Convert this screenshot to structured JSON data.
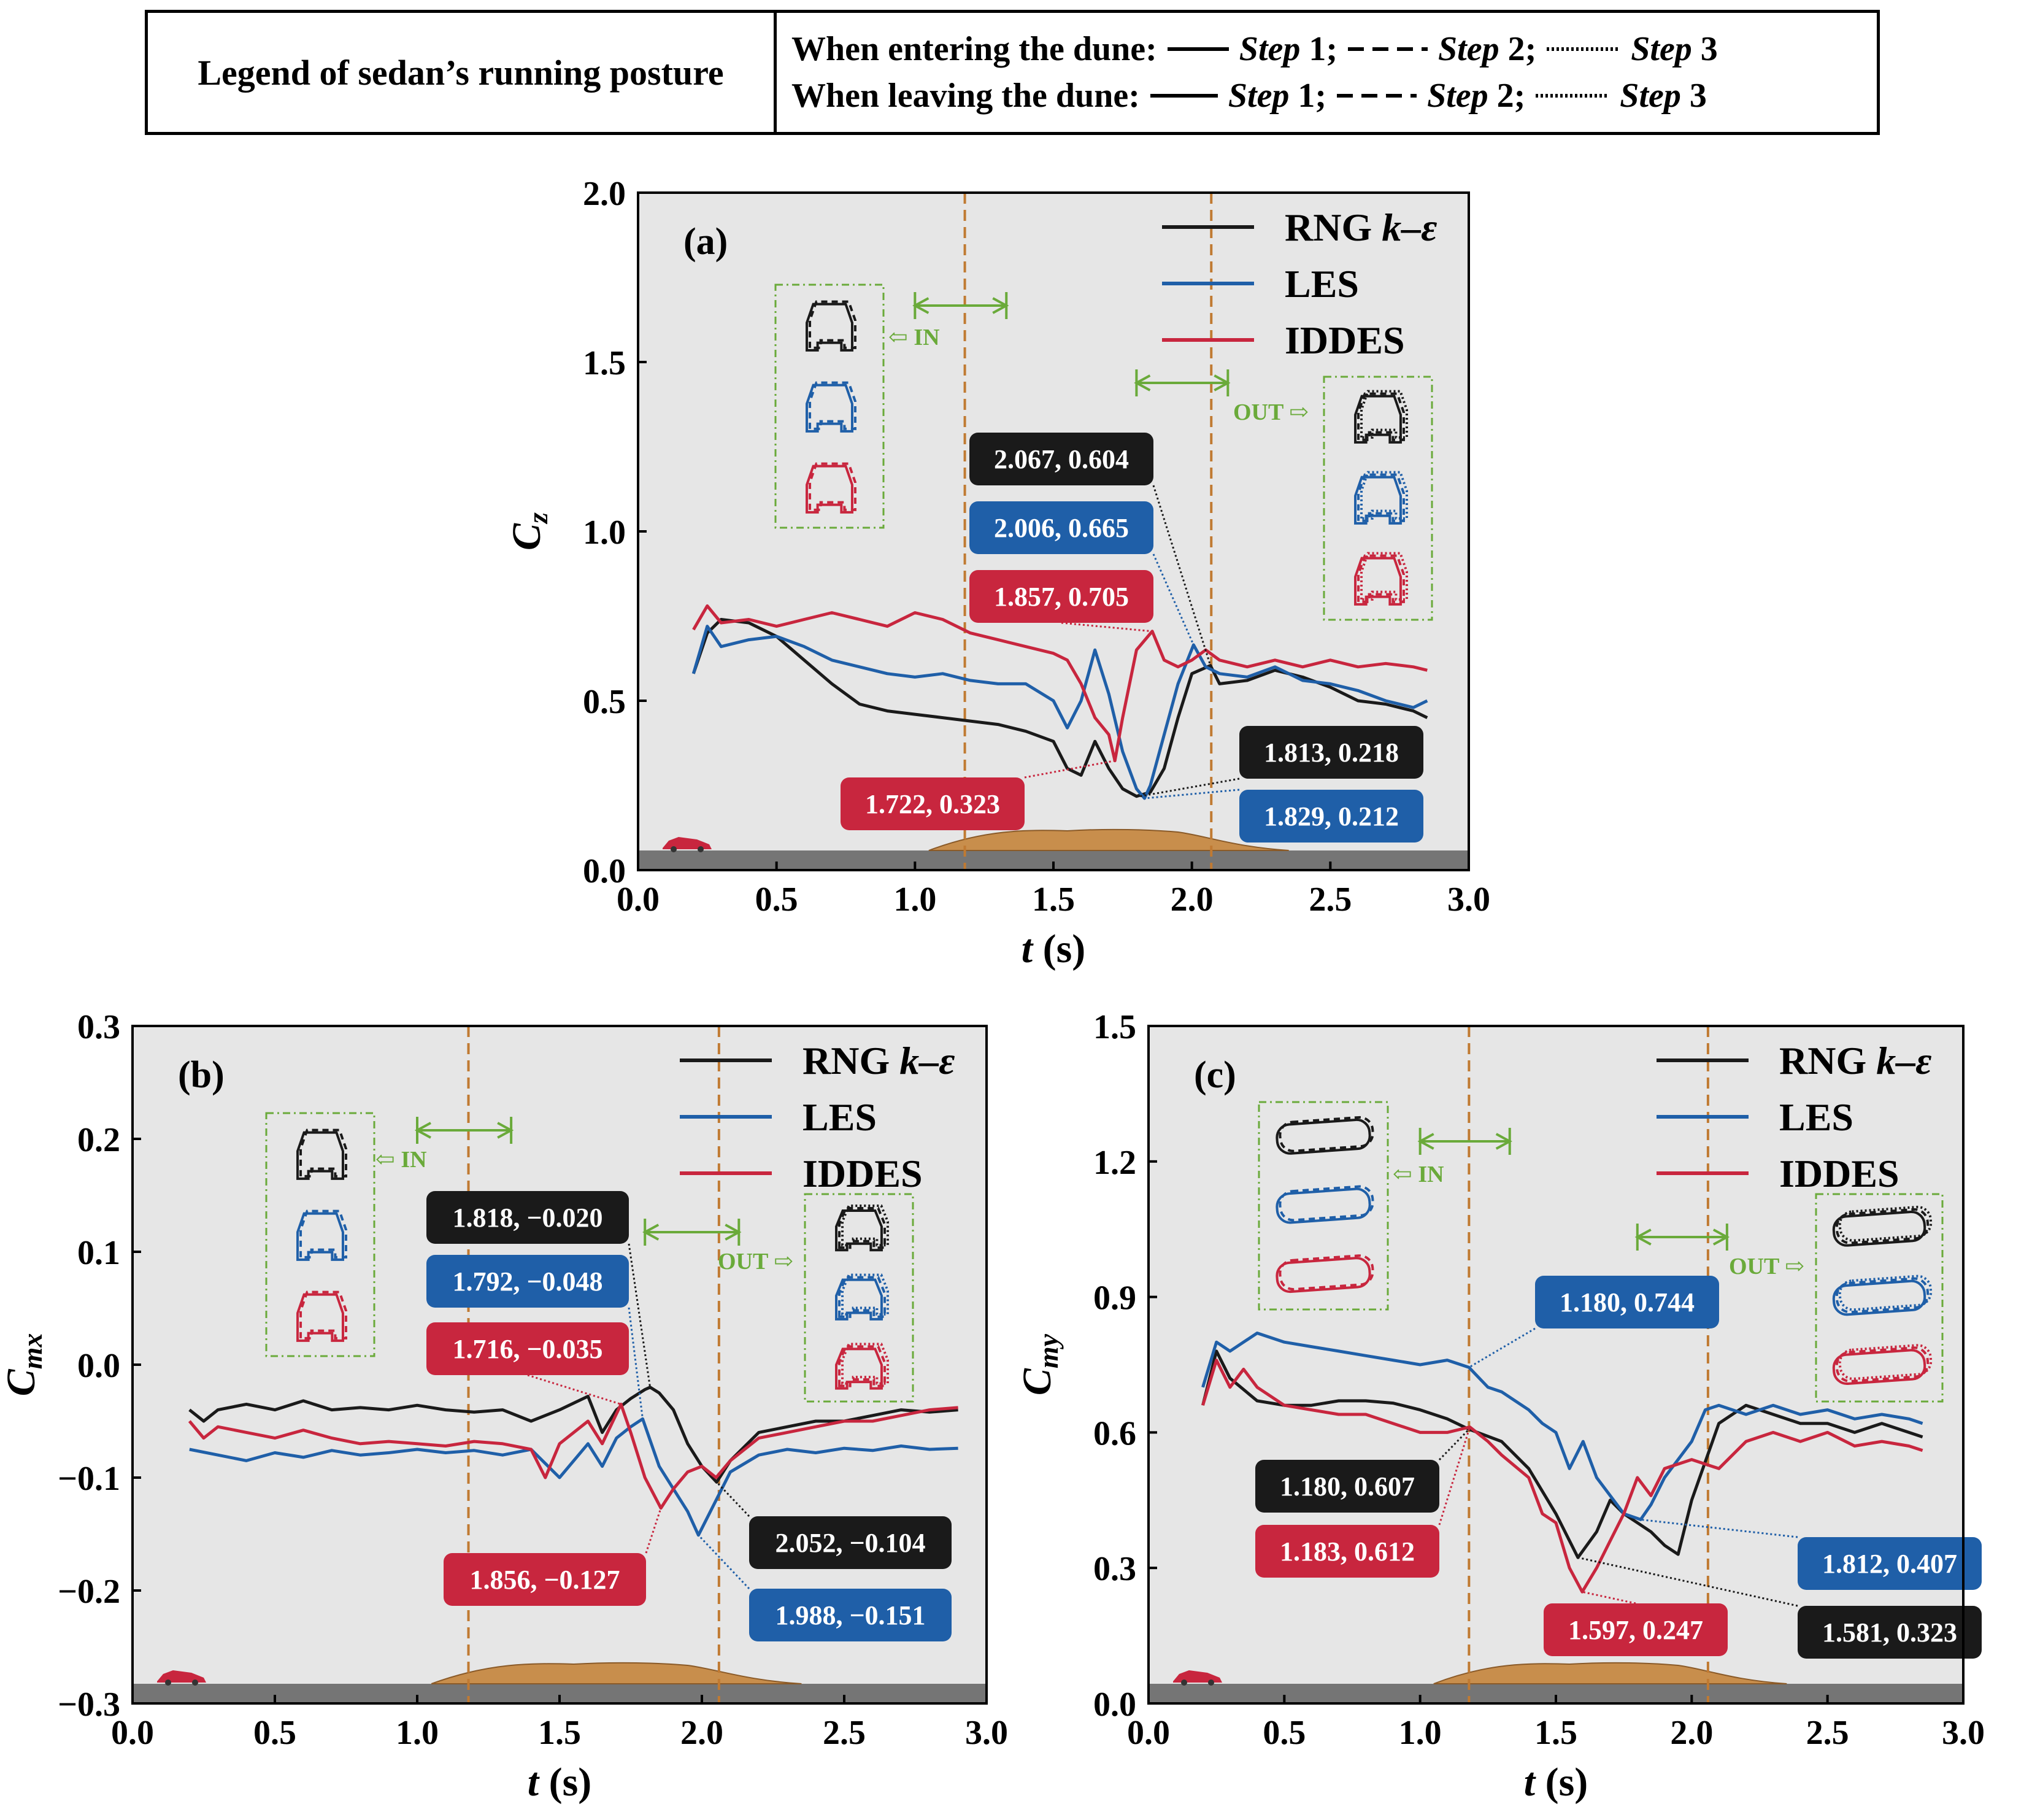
{
  "header_legend": {
    "title": "Legend of sedan’s running posture",
    "row1_label": "When entering the dune:",
    "row2_label": "When leaving the dune:",
    "step_word": "Step",
    "step1": "1;",
    "step2": "2;",
    "step3": "3"
  },
  "colors": {
    "rng": "#1a1a1a",
    "les": "#1f5fa8",
    "iddes": "#c8263e",
    "dune": "#c88e4c",
    "road": "#757575",
    "bg": "#e6e6e6",
    "arrow": "#6aaa3a",
    "vline": "#c07a32"
  },
  "panel_labels": {
    "a": "(a)",
    "b": "(b)",
    "c": "(c)"
  },
  "series_labels": {
    "rng": "RNG k–ε",
    "les": "LES",
    "iddes": "IDDES"
  },
  "axis_labels": {
    "x": "t (s)",
    "a_y": "Cz",
    "b_y": "Cmx",
    "c_y": "Cmy"
  },
  "in_label": "IN",
  "out_label": "OUT",
  "chart_data": [
    {
      "id": "a",
      "type": "line",
      "title": "(a)",
      "xlabel": "t (s)",
      "ylabel": "Cz",
      "xlim": [
        0,
        3
      ],
      "ylim": [
        0,
        2
      ],
      "xticks": [
        "0.0",
        "0.5",
        "1.0",
        "1.5",
        "2.0",
        "2.5",
        "3.0"
      ],
      "yticks": [
        "0.0",
        "0.5",
        "1.0",
        "1.5",
        "2.0"
      ],
      "vlines": [
        1.18,
        2.07
      ],
      "series": [
        {
          "name": "RNG k–ε",
          "x": [
            0.2,
            0.25,
            0.3,
            0.4,
            0.5,
            0.6,
            0.7,
            0.8,
            0.9,
            1.0,
            1.1,
            1.2,
            1.3,
            1.4,
            1.5,
            1.55,
            1.6,
            1.65,
            1.7,
            1.75,
            1.8,
            1.85,
            1.9,
            1.95,
            2.0,
            2.067,
            2.1,
            2.2,
            2.3,
            2.4,
            2.5,
            2.6,
            2.7,
            2.8,
            2.85
          ],
          "values": [
            0.58,
            0.7,
            0.74,
            0.73,
            0.69,
            0.62,
            0.55,
            0.49,
            0.47,
            0.46,
            0.45,
            0.44,
            0.43,
            0.41,
            0.38,
            0.3,
            0.28,
            0.38,
            0.3,
            0.24,
            0.218,
            0.23,
            0.3,
            0.45,
            0.58,
            0.604,
            0.55,
            0.56,
            0.59,
            0.57,
            0.54,
            0.5,
            0.49,
            0.47,
            0.45
          ]
        },
        {
          "name": "LES",
          "x": [
            0.2,
            0.25,
            0.3,
            0.4,
            0.5,
            0.6,
            0.7,
            0.8,
            0.9,
            1.0,
            1.1,
            1.2,
            1.3,
            1.4,
            1.5,
            1.55,
            1.6,
            1.65,
            1.7,
            1.75,
            1.8,
            1.829,
            1.85,
            1.9,
            1.95,
            2.006,
            2.05,
            2.1,
            2.2,
            2.3,
            2.4,
            2.5,
            2.6,
            2.7,
            2.8,
            2.85
          ],
          "values": [
            0.58,
            0.72,
            0.66,
            0.68,
            0.69,
            0.66,
            0.62,
            0.6,
            0.58,
            0.57,
            0.58,
            0.56,
            0.55,
            0.55,
            0.5,
            0.42,
            0.5,
            0.65,
            0.52,
            0.35,
            0.24,
            0.212,
            0.25,
            0.4,
            0.55,
            0.665,
            0.6,
            0.58,
            0.57,
            0.6,
            0.56,
            0.55,
            0.53,
            0.5,
            0.48,
            0.5
          ]
        },
        {
          "name": "IDDES",
          "x": [
            0.2,
            0.25,
            0.3,
            0.4,
            0.5,
            0.6,
            0.7,
            0.8,
            0.9,
            1.0,
            1.1,
            1.2,
            1.3,
            1.4,
            1.5,
            1.55,
            1.6,
            1.65,
            1.7,
            1.722,
            1.75,
            1.8,
            1.857,
            1.9,
            1.95,
            2.0,
            2.05,
            2.1,
            2.2,
            2.3,
            2.4,
            2.5,
            2.6,
            2.7,
            2.8,
            2.85
          ],
          "values": [
            0.71,
            0.78,
            0.73,
            0.74,
            0.72,
            0.74,
            0.76,
            0.74,
            0.72,
            0.76,
            0.74,
            0.7,
            0.68,
            0.66,
            0.64,
            0.62,
            0.55,
            0.45,
            0.4,
            0.323,
            0.45,
            0.65,
            0.705,
            0.62,
            0.6,
            0.62,
            0.65,
            0.62,
            0.6,
            0.62,
            0.6,
            0.62,
            0.6,
            0.61,
            0.6,
            0.59
          ]
        }
      ],
      "annotations": [
        {
          "text": "2.067, 0.604",
          "series": "RNG k–ε",
          "x": 2.067,
          "y": 0.604
        },
        {
          "text": "2.006, 0.665",
          "series": "LES",
          "x": 2.006,
          "y": 0.665
        },
        {
          "text": "1.857, 0.705",
          "series": "IDDES",
          "x": 1.857,
          "y": 0.705
        },
        {
          "text": "1.813, 0.218",
          "series": "RNG k–ε",
          "x": 1.813,
          "y": 0.218
        },
        {
          "text": "1.829, 0.212",
          "series": "LES",
          "x": 1.829,
          "y": 0.212
        },
        {
          "text": "1.722, 0.323",
          "series": "IDDES",
          "x": 1.722,
          "y": 0.323
        }
      ]
    },
    {
      "id": "b",
      "type": "line",
      "title": "(b)",
      "xlabel": "t (s)",
      "ylabel": "Cmx",
      "xlim": [
        0,
        3
      ],
      "ylim": [
        -0.3,
        0.3
      ],
      "xticks": [
        "0.0",
        "0.5",
        "1.0",
        "1.5",
        "2.0",
        "2.5",
        "3.0"
      ],
      "yticks": [
        "−0.3",
        "−0.2",
        "−0.1",
        "0.0",
        "0.1",
        "0.2",
        "0.3"
      ],
      "vlines": [
        1.18,
        2.06
      ],
      "series": [
        {
          "name": "RNG k–ε",
          "x": [
            0.2,
            0.25,
            0.3,
            0.4,
            0.5,
            0.6,
            0.7,
            0.8,
            0.9,
            1.0,
            1.1,
            1.2,
            1.3,
            1.4,
            1.5,
            1.6,
            1.65,
            1.7,
            1.75,
            1.8,
            1.818,
            1.85,
            1.9,
            1.95,
            2.0,
            2.052,
            2.1,
            2.2,
            2.3,
            2.4,
            2.5,
            2.6,
            2.7,
            2.8,
            2.9
          ],
          "values": [
            -0.04,
            -0.05,
            -0.04,
            -0.035,
            -0.04,
            -0.032,
            -0.04,
            -0.038,
            -0.04,
            -0.036,
            -0.04,
            -0.042,
            -0.04,
            -0.05,
            -0.04,
            -0.028,
            -0.06,
            -0.04,
            -0.03,
            -0.022,
            -0.02,
            -0.025,
            -0.04,
            -0.07,
            -0.09,
            -0.104,
            -0.085,
            -0.06,
            -0.055,
            -0.05,
            -0.05,
            -0.045,
            -0.04,
            -0.042,
            -0.04
          ]
        },
        {
          "name": "LES",
          "x": [
            0.2,
            0.3,
            0.4,
            0.5,
            0.6,
            0.7,
            0.8,
            0.9,
            1.0,
            1.1,
            1.2,
            1.3,
            1.4,
            1.5,
            1.6,
            1.65,
            1.7,
            1.75,
            1.792,
            1.85,
            1.9,
            1.95,
            1.988,
            2.05,
            2.1,
            2.2,
            2.3,
            2.4,
            2.5,
            2.6,
            2.7,
            2.8,
            2.9
          ],
          "values": [
            -0.075,
            -0.08,
            -0.085,
            -0.078,
            -0.082,
            -0.076,
            -0.08,
            -0.078,
            -0.075,
            -0.078,
            -0.076,
            -0.08,
            -0.075,
            -0.1,
            -0.07,
            -0.09,
            -0.065,
            -0.055,
            -0.048,
            -0.09,
            -0.11,
            -0.13,
            -0.151,
            -0.12,
            -0.095,
            -0.08,
            -0.075,
            -0.078,
            -0.074,
            -0.076,
            -0.072,
            -0.075,
            -0.074
          ]
        },
        {
          "name": "IDDES",
          "x": [
            0.2,
            0.25,
            0.3,
            0.4,
            0.5,
            0.6,
            0.7,
            0.8,
            0.9,
            1.0,
            1.1,
            1.2,
            1.3,
            1.4,
            1.45,
            1.5,
            1.6,
            1.65,
            1.716,
            1.75,
            1.8,
            1.856,
            1.9,
            1.95,
            2.0,
            2.05,
            2.1,
            2.2,
            2.3,
            2.4,
            2.5,
            2.6,
            2.7,
            2.8,
            2.9
          ],
          "values": [
            -0.05,
            -0.065,
            -0.055,
            -0.06,
            -0.065,
            -0.058,
            -0.065,
            -0.07,
            -0.068,
            -0.07,
            -0.072,
            -0.068,
            -0.07,
            -0.075,
            -0.1,
            -0.07,
            -0.05,
            -0.07,
            -0.035,
            -0.06,
            -0.1,
            -0.127,
            -0.11,
            -0.095,
            -0.09,
            -0.1,
            -0.085,
            -0.065,
            -0.06,
            -0.055,
            -0.05,
            -0.05,
            -0.045,
            -0.04,
            -0.038
          ]
        }
      ],
      "annotations": [
        {
          "text": "1.818, −0.020",
          "series": "RNG k–ε",
          "x": 1.818,
          "y": -0.02
        },
        {
          "text": "1.792, −0.048",
          "series": "LES",
          "x": 1.792,
          "y": -0.048
        },
        {
          "text": "1.716, −0.035",
          "series": "IDDES",
          "x": 1.716,
          "y": -0.035
        },
        {
          "text": "2.052, −0.104",
          "series": "RNG k–ε",
          "x": 2.052,
          "y": -0.104
        },
        {
          "text": "1.988, −0.151",
          "series": "LES",
          "x": 1.988,
          "y": -0.151
        },
        {
          "text": "1.856, −0.127",
          "series": "IDDES",
          "x": 1.856,
          "y": -0.127
        }
      ]
    },
    {
      "id": "c",
      "type": "line",
      "title": "(c)",
      "xlabel": "t (s)",
      "ylabel": "Cmy",
      "xlim": [
        0,
        3
      ],
      "ylim": [
        0,
        1.5
      ],
      "xticks": [
        "0.0",
        "0.5",
        "1.0",
        "1.5",
        "2.0",
        "2.5",
        "3.0"
      ],
      "yticks": [
        "0.0",
        "0.3",
        "0.6",
        "0.9",
        "1.2",
        "1.5"
      ],
      "vlines": [
        1.18,
        2.06
      ],
      "series": [
        {
          "name": "RNG k–ε",
          "x": [
            0.2,
            0.25,
            0.3,
            0.4,
            0.5,
            0.6,
            0.7,
            0.8,
            0.9,
            1.0,
            1.1,
            1.18,
            1.3,
            1.4,
            1.5,
            1.581,
            1.65,
            1.7,
            1.75,
            1.8,
            1.85,
            1.9,
            1.95,
            2.0,
            2.1,
            2.2,
            2.3,
            2.4,
            2.5,
            2.6,
            2.7,
            2.8,
            2.85
          ],
          "values": [
            0.66,
            0.78,
            0.72,
            0.67,
            0.66,
            0.66,
            0.67,
            0.67,
            0.665,
            0.65,
            0.63,
            0.607,
            0.58,
            0.52,
            0.42,
            0.323,
            0.38,
            0.45,
            0.42,
            0.4,
            0.38,
            0.35,
            0.33,
            0.45,
            0.62,
            0.66,
            0.64,
            0.62,
            0.62,
            0.6,
            0.62,
            0.6,
            0.59
          ]
        },
        {
          "name": "LES",
          "x": [
            0.2,
            0.25,
            0.3,
            0.4,
            0.5,
            0.6,
            0.7,
            0.8,
            0.9,
            1.0,
            1.1,
            1.18,
            1.25,
            1.3,
            1.4,
            1.45,
            1.5,
            1.55,
            1.6,
            1.65,
            1.7,
            1.75,
            1.812,
            1.85,
            1.9,
            2.0,
            2.05,
            2.1,
            2.2,
            2.3,
            2.4,
            2.5,
            2.6,
            2.7,
            2.8,
            2.85
          ],
          "values": [
            0.7,
            0.8,
            0.78,
            0.82,
            0.8,
            0.79,
            0.78,
            0.77,
            0.76,
            0.75,
            0.76,
            0.744,
            0.7,
            0.69,
            0.65,
            0.62,
            0.6,
            0.52,
            0.58,
            0.5,
            0.46,
            0.42,
            0.407,
            0.44,
            0.5,
            0.58,
            0.65,
            0.66,
            0.64,
            0.66,
            0.64,
            0.65,
            0.63,
            0.64,
            0.63,
            0.62
          ]
        },
        {
          "name": "IDDES",
          "x": [
            0.2,
            0.25,
            0.3,
            0.35,
            0.4,
            0.5,
            0.6,
            0.7,
            0.8,
            0.9,
            1.0,
            1.1,
            1.183,
            1.25,
            1.3,
            1.4,
            1.45,
            1.5,
            1.55,
            1.597,
            1.65,
            1.7,
            1.75,
            1.8,
            1.85,
            1.9,
            2.0,
            2.1,
            2.2,
            2.3,
            2.4,
            2.5,
            2.6,
            2.7,
            2.8,
            2.85
          ],
          "values": [
            0.66,
            0.76,
            0.7,
            0.74,
            0.7,
            0.66,
            0.65,
            0.64,
            0.64,
            0.62,
            0.6,
            0.6,
            0.612,
            0.58,
            0.55,
            0.5,
            0.42,
            0.4,
            0.3,
            0.247,
            0.3,
            0.36,
            0.42,
            0.5,
            0.46,
            0.52,
            0.54,
            0.52,
            0.58,
            0.6,
            0.58,
            0.6,
            0.57,
            0.58,
            0.57,
            0.56
          ]
        }
      ],
      "annotations": [
        {
          "text": "1.180, 0.744",
          "series": "LES",
          "x": 1.18,
          "y": 0.744
        },
        {
          "text": "1.180, 0.607",
          "series": "RNG k–ε",
          "x": 1.18,
          "y": 0.607
        },
        {
          "text": "1.183, 0.612",
          "series": "IDDES",
          "x": 1.183,
          "y": 0.612
        },
        {
          "text": "1.812, 0.407",
          "series": "LES",
          "x": 1.812,
          "y": 0.407
        },
        {
          "text": "1.597, 0.247",
          "series": "IDDES",
          "x": 1.597,
          "y": 0.247
        },
        {
          "text": "1.581, 0.323",
          "series": "RNG k–ε",
          "x": 1.581,
          "y": 0.323
        }
      ]
    }
  ]
}
